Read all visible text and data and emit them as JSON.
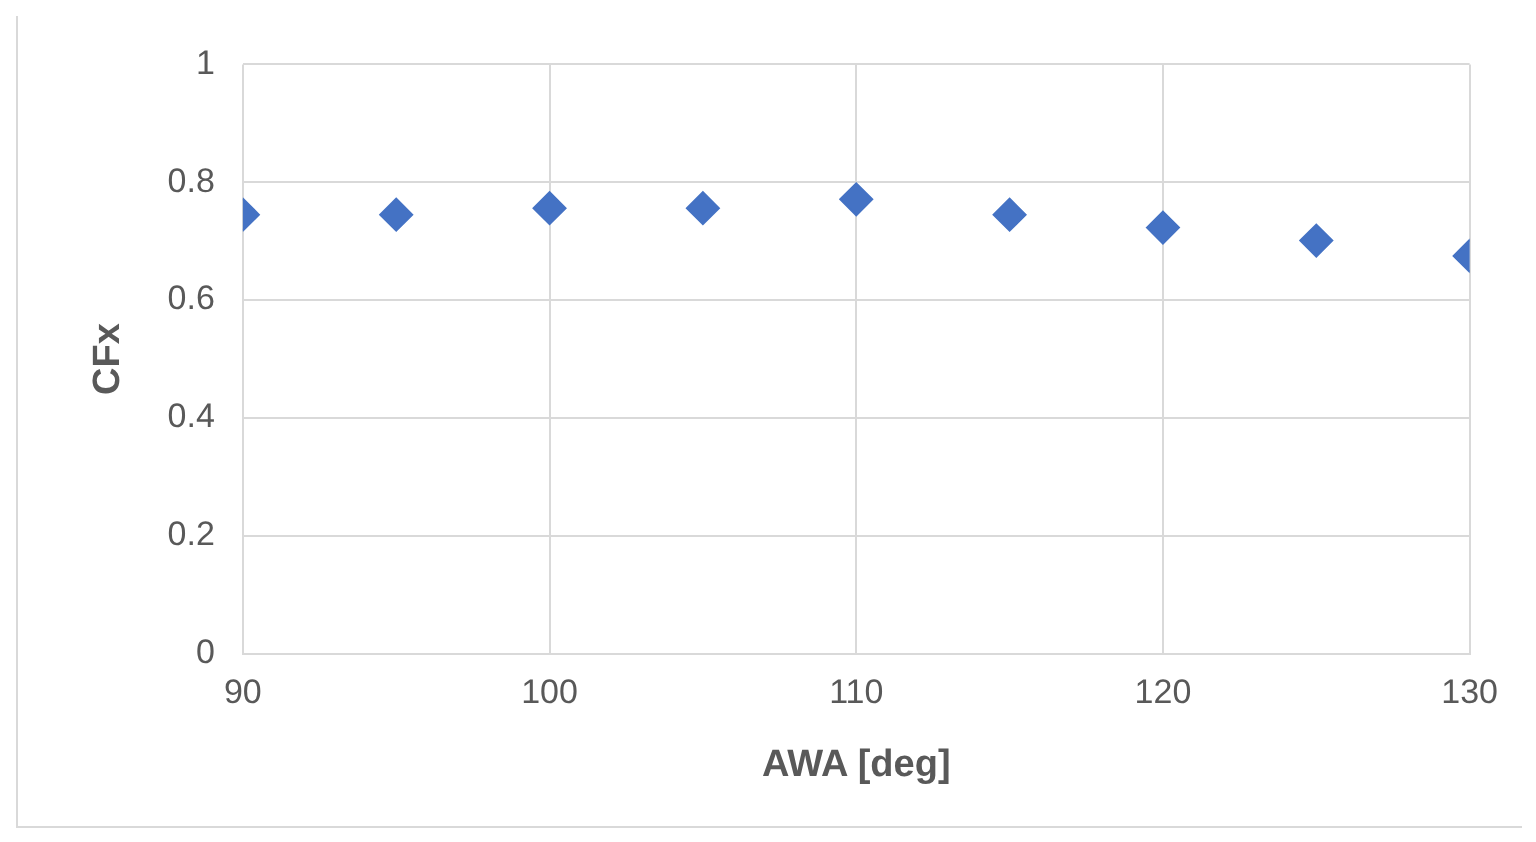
{
  "chart_data": {
    "type": "scatter",
    "xlabel": "AWA [deg]",
    "ylabel": "CFx",
    "x": [
      90,
      95,
      100,
      105,
      110,
      115,
      120,
      125,
      130
    ],
    "series": [
      {
        "color": "#4472c4",
        "values": [
          0.745,
          0.745,
          0.756,
          0.756,
          0.771,
          0.745,
          0.723,
          0.701,
          0.675
        ]
      }
    ],
    "xlim": [
      90,
      130
    ],
    "xticks": [
      90,
      100,
      110,
      120,
      130
    ],
    "ylim": [
      0,
      1
    ],
    "yticks": [
      0,
      0.2,
      0.4,
      0.6,
      0.8,
      1
    ],
    "grid": true,
    "marker": "diamond",
    "legend": false
  }
}
